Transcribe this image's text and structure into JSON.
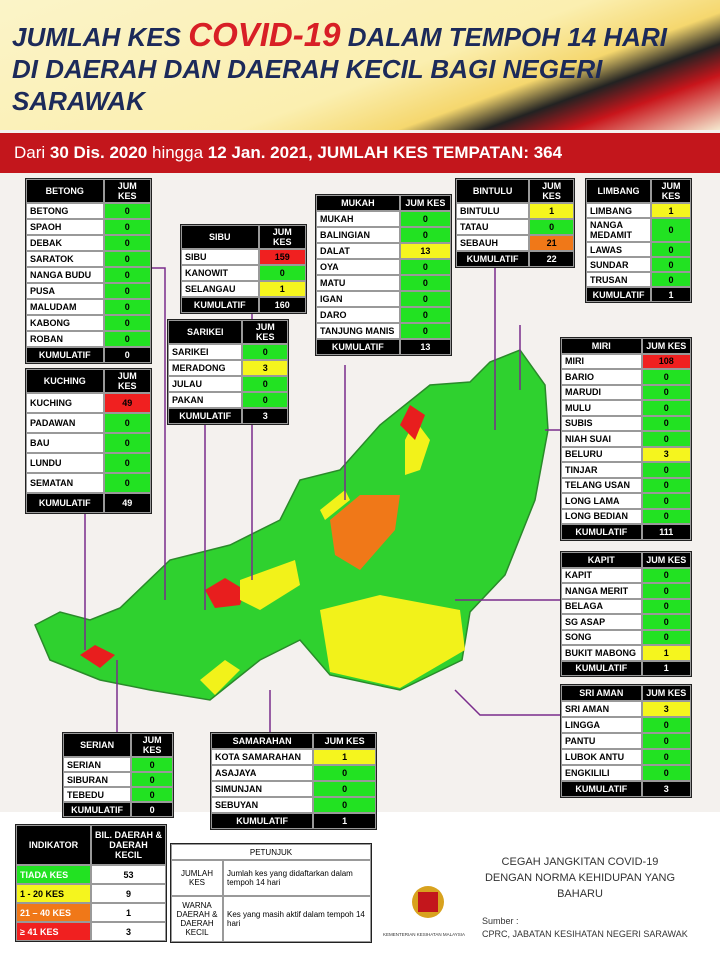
{
  "header": {
    "title_lines": [
      [
        "JUMLAH KES",
        "COVID-19",
        "DALAM TEMPOH 14 HARI"
      ],
      [
        "DI DAERAH DAN DAERAH KECIL BAGI NEGERI"
      ],
      [
        "SARAWAK"
      ]
    ]
  },
  "banner": [
    "Dari",
    "30 Dis. 2020",
    "hingga",
    "12 Jan. 2021, JUMLAH KES TEMPATAN: 364"
  ],
  "tables": [
    {
      "title": "BETONG",
      "column": "JUM KES",
      "rows": [
        {
          "name": "BETONG",
          "value": 0,
          "color": "#22e222"
        },
        {
          "name": "SPAOH",
          "value": 0,
          "color": "#22e222"
        },
        {
          "name": "DEBAK",
          "value": 0,
          "color": "#22e222"
        },
        {
          "name": "SARATOK",
          "value": 0,
          "color": "#22e222"
        },
        {
          "name": "NANGA BUDU",
          "value": 0,
          "color": "#22e222"
        },
        {
          "name": "PUSA",
          "value": 0,
          "color": "#22e222"
        },
        {
          "name": "MALUDAM",
          "value": 0,
          "color": "#22e222"
        },
        {
          "name": "KABONG",
          "value": 0,
          "color": "#22e222"
        },
        {
          "name": "ROBAN",
          "value": 0,
          "color": "#22e222"
        }
      ],
      "total_label": "KUMULATIF",
      "total": 0
    },
    {
      "title": "KUCHING",
      "column": "JUM KES",
      "rows": [
        {
          "name": "KUCHING",
          "value": 49,
          "color": "#f02020"
        },
        {
          "name": "PADAWAN",
          "value": 0,
          "color": "#22e222"
        },
        {
          "name": "BAU",
          "value": 0,
          "color": "#22e222"
        },
        {
          "name": "LUNDU",
          "value": 0,
          "color": "#22e222"
        },
        {
          "name": "SEMATAN",
          "value": 0,
          "color": "#22e222"
        }
      ],
      "total_label": "KUMULATIF",
      "total": 49
    },
    {
      "title": "SIBU",
      "column": "JUM KES",
      "rows": [
        {
          "name": "SIBU",
          "value": 159,
          "color": "#f02020"
        },
        {
          "name": "KANOWIT",
          "value": 0,
          "color": "#22e222"
        },
        {
          "name": "SELANGAU",
          "value": 1,
          "color": "#f5f51e"
        }
      ],
      "total_label": "KUMULATIF",
      "total": 160
    },
    {
      "title": "SARIKEI",
      "column": "JUM KES",
      "rows": [
        {
          "name": "SARIKEI",
          "value": 0,
          "color": "#22e222"
        },
        {
          "name": "MERADONG",
          "value": 3,
          "color": "#f5f51e"
        },
        {
          "name": "JULAU",
          "value": 0,
          "color": "#22e222"
        },
        {
          "name": "PAKAN",
          "value": 0,
          "color": "#22e222"
        }
      ],
      "total_label": "KUMULATIF",
      "total": 3
    },
    {
      "title": "MUKAH",
      "column": "JUM KES",
      "rows": [
        {
          "name": "MUKAH",
          "value": 0,
          "color": "#22e222"
        },
        {
          "name": "BALINGIAN",
          "value": 0,
          "color": "#22e222"
        },
        {
          "name": "DALAT",
          "value": 13,
          "color": "#f5f51e"
        },
        {
          "name": "OYA",
          "value": 0,
          "color": "#22e222"
        },
        {
          "name": "MATU",
          "value": 0,
          "color": "#22e222"
        },
        {
          "name": "IGAN",
          "value": 0,
          "color": "#22e222"
        },
        {
          "name": "DARO",
          "value": 0,
          "color": "#22e222"
        },
        {
          "name": "TANJUNG MANIS",
          "value": 0,
          "color": "#22e222"
        }
      ],
      "total_label": "KUMULATIF",
      "total": 13
    },
    {
      "title": "BINTULU",
      "column": "JUM KES",
      "rows": [
        {
          "name": "BINTULU",
          "value": 1,
          "color": "#f5f51e"
        },
        {
          "name": "TATAU",
          "value": 0,
          "color": "#22e222"
        },
        {
          "name": "SEBAUH",
          "value": 21,
          "color": "#f07818"
        }
      ],
      "total_label": "KUMULATIF",
      "total": 22
    },
    {
      "title": "LIMBANG",
      "column": "JUM KES",
      "rows": [
        {
          "name": "LIMBANG",
          "value": 1,
          "color": "#f5f51e"
        },
        {
          "name": "NANGA MEDAMIT",
          "value": 0,
          "color": "#22e222"
        },
        {
          "name": "LAWAS",
          "value": 0,
          "color": "#22e222"
        },
        {
          "name": "SUNDAR",
          "value": 0,
          "color": "#22e222"
        },
        {
          "name": "TRUSAN",
          "value": 0,
          "color": "#22e222"
        }
      ],
      "total_label": "KUMULATIF",
      "total": 1
    },
    {
      "title": "MIRI",
      "column": "JUM KES",
      "rows": [
        {
          "name": "MIRI",
          "value": 108,
          "color": "#f02020"
        },
        {
          "name": "BARIO",
          "value": 0,
          "color": "#22e222"
        },
        {
          "name": "MARUDI",
          "value": 0,
          "color": "#22e222"
        },
        {
          "name": "MULU",
          "value": 0,
          "color": "#22e222"
        },
        {
          "name": "SUBIS",
          "value": 0,
          "color": "#22e222"
        },
        {
          "name": "NIAH SUAI",
          "value": 0,
          "color": "#22e222"
        },
        {
          "name": "BELURU",
          "value": 3,
          "color": "#f5f51e"
        },
        {
          "name": "TINJAR",
          "value": 0,
          "color": "#22e222"
        },
        {
          "name": "TELANG USAN",
          "value": 0,
          "color": "#22e222"
        },
        {
          "name": "LONG LAMA",
          "value": 0,
          "color": "#22e222"
        },
        {
          "name": "LONG BEDIAN",
          "value": 0,
          "color": "#22e222"
        }
      ],
      "total_label": "KUMULATIF",
      "total": 111
    },
    {
      "title": "KAPIT",
      "column": "JUM KES",
      "rows": [
        {
          "name": "KAPIT",
          "value": 0,
          "color": "#22e222"
        },
        {
          "name": "NANGA MERIT",
          "value": 0,
          "color": "#22e222"
        },
        {
          "name": "BELAGA",
          "value": 0,
          "color": "#22e222"
        },
        {
          "name": "SG ASAP",
          "value": 0,
          "color": "#22e222"
        },
        {
          "name": "SONG",
          "value": 0,
          "color": "#22e222"
        },
        {
          "name": "BUKIT MABONG",
          "value": 1,
          "color": "#f5f51e"
        }
      ],
      "total_label": "KUMULATIF",
      "total": 1
    },
    {
      "title": "SRI AMAN",
      "column": "JUM KES",
      "rows": [
        {
          "name": "SRI AMAN",
          "value": 3,
          "color": "#f5f51e"
        },
        {
          "name": "LINGGA",
          "value": 0,
          "color": "#22e222"
        },
        {
          "name": "PANTU",
          "value": 0,
          "color": "#22e222"
        },
        {
          "name": "LUBOK ANTU",
          "value": 0,
          "color": "#22e222"
        },
        {
          "name": "ENGKILILI",
          "value": 0,
          "color": "#22e222"
        }
      ],
      "total_label": "KUMULATIF",
      "total": 3
    },
    {
      "title": "SERIAN",
      "column": "JUM KES",
      "rows": [
        {
          "name": "SERIAN",
          "value": 0,
          "color": "#22e222"
        },
        {
          "name": "SIBURAN",
          "value": 0,
          "color": "#22e222"
        },
        {
          "name": "TEBEDU",
          "value": 0,
          "color": "#22e222"
        }
      ],
      "total_label": "KUMULATIF",
      "total": 0
    },
    {
      "title": "SAMARAHAN",
      "column": "JUM KES",
      "rows": [
        {
          "name": "KOTA SAMARAHAN",
          "value": 1,
          "color": "#f5f51e"
        },
        {
          "name": "ASAJAYA",
          "value": 0,
          "color": "#22e222"
        },
        {
          "name": "SIMUNJAN",
          "value": 0,
          "color": "#22e222"
        },
        {
          "name": "SEBUYAN",
          "value": 0,
          "color": "#22e222"
        }
      ],
      "total_label": "KUMULATIF",
      "total": 1
    }
  ],
  "indicator": {
    "header": [
      "INDIKATOR",
      "BIL. DAERAH & DAERAH KECIL"
    ],
    "rows": [
      {
        "label": "TIADA KES",
        "value": 53,
        "color": "#22e222"
      },
      {
        "label": "1 - 20 KES",
        "value": 9,
        "color": "#f5f51e"
      },
      {
        "label": "21 – 40 KES",
        "value": 1,
        "color": "#f07818"
      },
      {
        "label": "≥ 41 KES",
        "value": 3,
        "color": "#f02020"
      }
    ]
  },
  "legend": {
    "title": "PETUNJUK",
    "rows": [
      [
        "JUMLAH KES",
        "Jumlah kes yang didaftarkan dalam tempoh 14 hari"
      ],
      [
        "WARNA DAERAH & DAERAH KECIL",
        "Kes yang masih aktif dalam tempoh 14 hari"
      ]
    ]
  },
  "footer": {
    "slogan": "CEGAH JANGKITAN COVID-19 DENGAN NORMA KEHIDUPAN YANG BAHARU",
    "ministry": "KEMENTERIAN KESIHATAN MALAYSIA",
    "source_label": "Sumber :",
    "source": "CPRC, JABATAN KESIHATAN NEGERI SARAWAK"
  }
}
